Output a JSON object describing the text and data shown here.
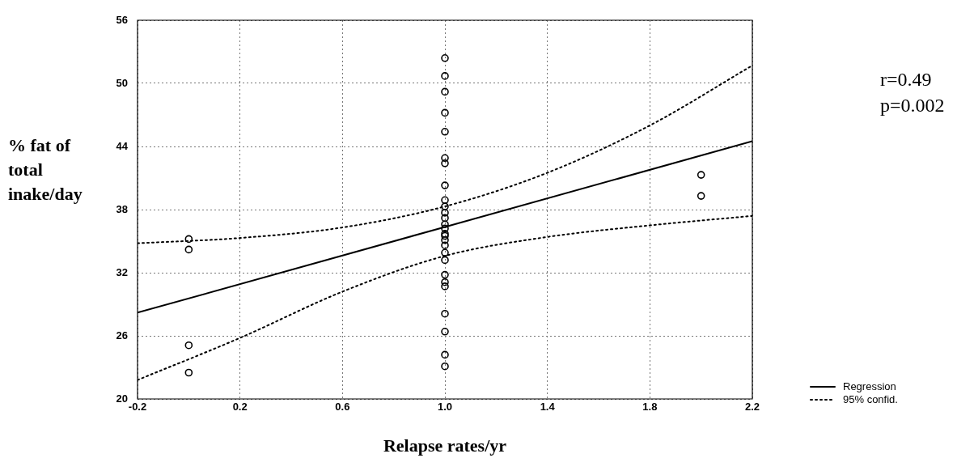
{
  "chart_data": {
    "type": "scatter",
    "xlabel": "Relapse rates/yr",
    "ylabel": "% fat of total inake/day",
    "annotations": [
      "r=0.49",
      "p=0.002"
    ],
    "xlim": [
      -0.2,
      2.2
    ],
    "xticks": [
      -0.2,
      0.2,
      0.6,
      {
        "value": 1,
        "label": "1.0"
      },
      1.4,
      1.8,
      2.2
    ],
    "ylim": [
      20,
      56
    ],
    "yticks": [
      20,
      26,
      32,
      38,
      44,
      50,
      56
    ],
    "grid": true,
    "legend": "bottom right",
    "marker": "circle",
    "series": [
      {
        "color": "#000000",
        "x": [
          0,
          0,
          0,
          0,
          1,
          1,
          1,
          1,
          1,
          1,
          1,
          1,
          1,
          1,
          1,
          1,
          1,
          1,
          1,
          1,
          1,
          1,
          1,
          1,
          1,
          1,
          1,
          1,
          1,
          1,
          1,
          2,
          2
        ],
        "values": [
          35.2,
          34.2,
          25.1,
          22.5,
          52.4,
          50.7,
          49.2,
          47.2,
          45.4,
          42.9,
          42.4,
          40.3,
          38.9,
          38.3,
          37.7,
          37.2,
          36.2,
          35.7,
          35.1,
          34.6,
          33.9,
          33.2,
          31.8,
          31.1,
          30.7,
          28.1,
          26.4,
          24.2,
          23.1,
          35.5,
          36.6,
          41.3,
          39.3
        ]
      },
      {
        "type": "line",
        "name": "Regression",
        "color": "#000000",
        "line_style": "solid",
        "marker": "none",
        "x": [
          -0.2,
          2.2
        ],
        "values": [
          28.2,
          44.5
        ]
      },
      {
        "type": "line",
        "name": "95% confid.",
        "color": "#000000",
        "line_style": "dotted",
        "marker": "none",
        "x": [
          -0.2,
          0.2,
          0.6,
          1.0,
          1.4,
          1.8,
          2.2
        ],
        "values": [
          34.8,
          35.3,
          36.3,
          38.3,
          41.5,
          46,
          51.7
        ]
      },
      {
        "type": "line",
        "color": "#000000",
        "line_style": "dotted",
        "marker": "none",
        "x": [
          -0.2,
          0.2,
          0.6,
          1.0,
          1.4,
          1.8,
          2.2
        ],
        "values": [
          21.8,
          25.8,
          30.2,
          33.6,
          35.4,
          36.5,
          37.4
        ]
      }
    ]
  }
}
